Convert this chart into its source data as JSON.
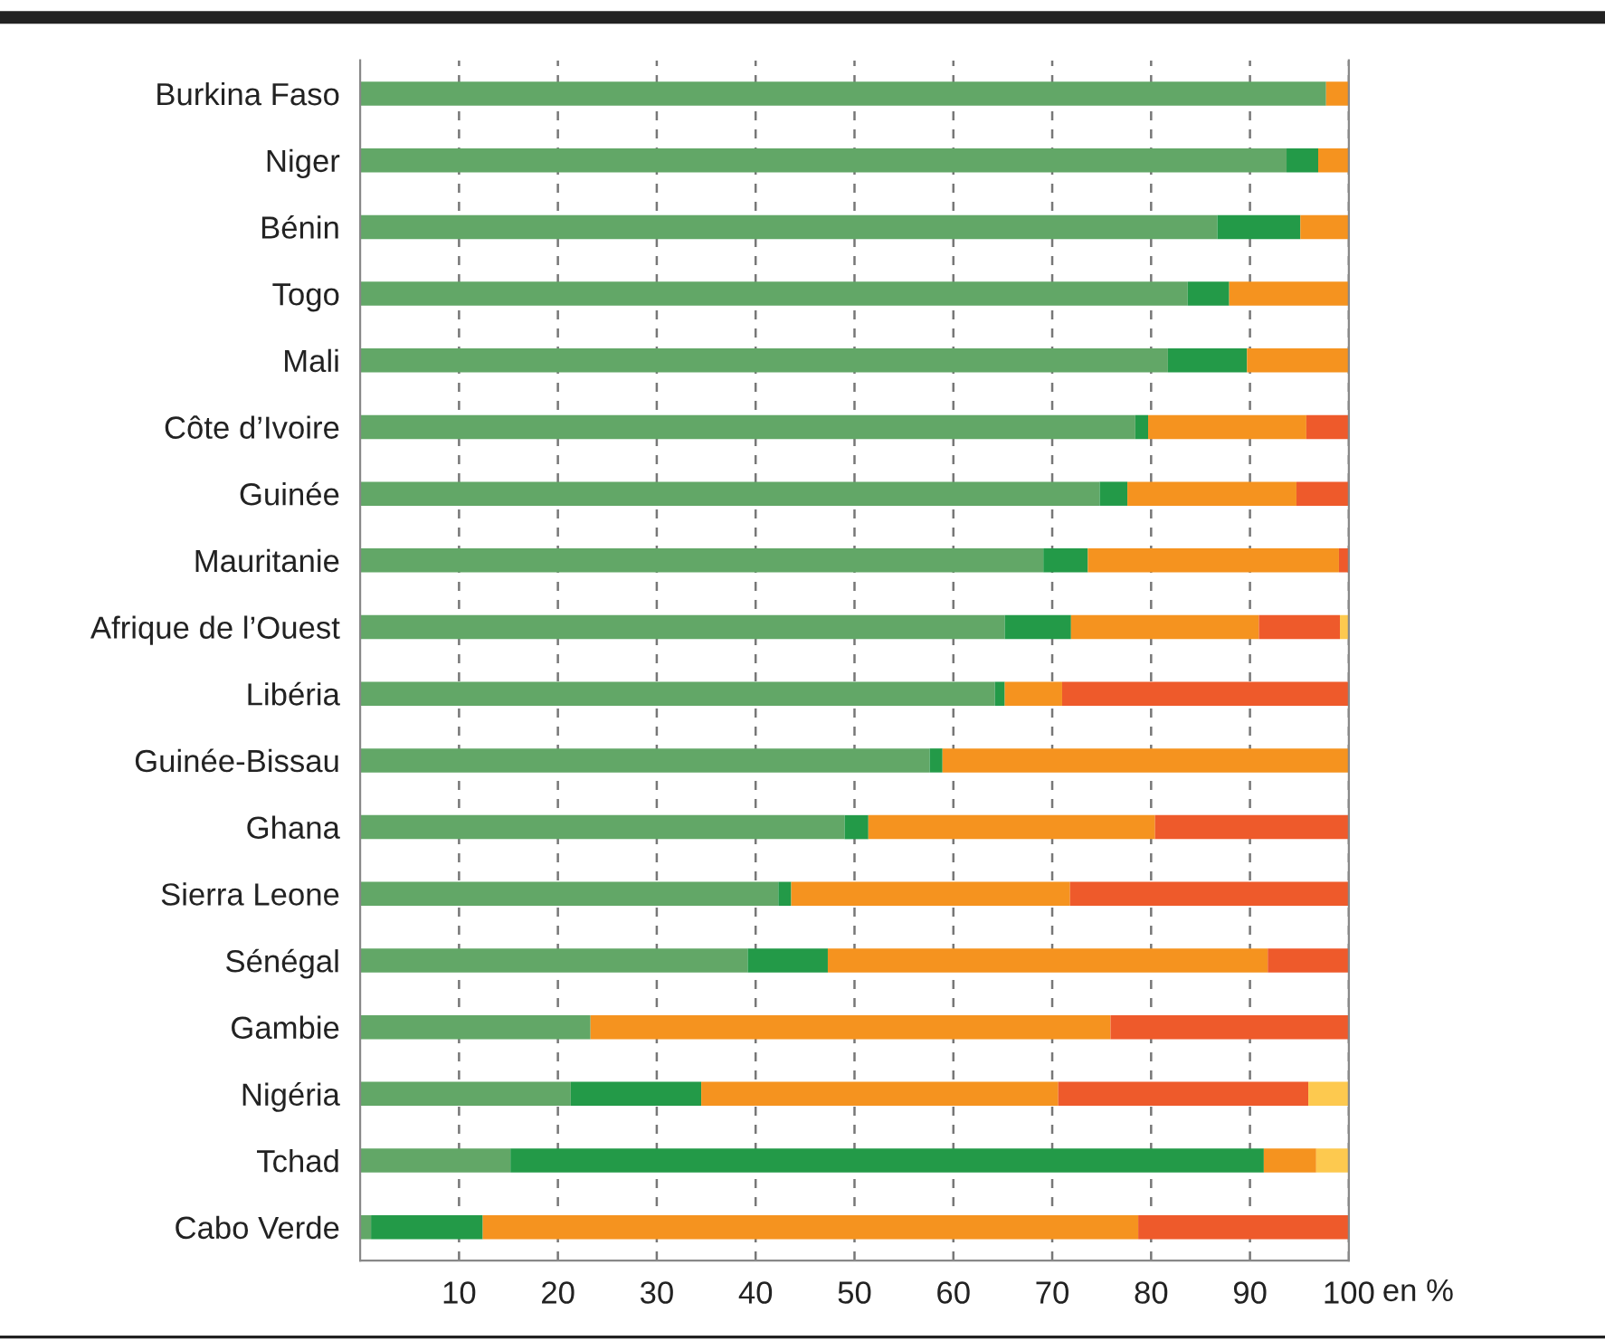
{
  "chart_data": {
    "type": "bar",
    "orientation": "horizontal",
    "stacked": true,
    "xlabel": "en %",
    "categories": [
      "Burkina Faso",
      "Niger",
      "Bénin",
      "Togo",
      "Mali",
      "Côte d’Ivoire",
      "Guinée",
      "Mauritanie",
      "Afrique de l’Ouest",
      "Libéria",
      "Guinée-Bissau",
      "Ghana",
      "Sierra Leone",
      "Sénégal",
      "Gambie",
      "Nigéria",
      "Tchad",
      "Cabo Verde"
    ],
    "series": [
      {
        "color": "#62a767",
        "values": [
          97.7,
          93.7,
          86.7,
          83.7,
          81.7,
          78.4,
          74.8,
          69.1,
          65.2,
          64.2,
          57.6,
          49.0,
          42.3,
          39.2,
          23.3,
          21.3,
          15.2,
          1.1
        ]
      },
      {
        "color": "#239a48",
        "values": [
          0,
          3.2,
          8.4,
          4.2,
          8.0,
          1.3,
          2.8,
          4.5,
          6.7,
          1.0,
          1.3,
          2.4,
          1.3,
          8.1,
          0,
          13.2,
          76.2,
          11.3
        ]
      },
      {
        "color": "#f5931f",
        "values": [
          2.3,
          3.1,
          4.9,
          12.1,
          10.3,
          16.0,
          17.1,
          25.4,
          19.0,
          5.8,
          41.1,
          29.0,
          28.2,
          44.5,
          52.6,
          36.1,
          5.3,
          66.3
        ]
      },
      {
        "color": "#ee5a2b",
        "values": [
          0,
          0,
          0,
          0,
          0,
          4.3,
          5.3,
          1.0,
          8.2,
          29.0,
          0,
          19.6,
          28.2,
          8.2,
          24.1,
          25.3,
          0,
          21.3
        ]
      },
      {
        "color": "#fdc94f",
        "values": [
          0,
          0,
          0,
          0,
          0,
          0,
          0,
          0,
          0.9,
          0,
          0,
          0,
          0,
          0,
          0,
          4.1,
          3.3,
          0
        ]
      }
    ],
    "xlim": [
      0,
      100
    ],
    "xticks": [
      10,
      20,
      30,
      40,
      50,
      60,
      70,
      80,
      90,
      100
    ],
    "grid": "x",
    "legend": false
  }
}
